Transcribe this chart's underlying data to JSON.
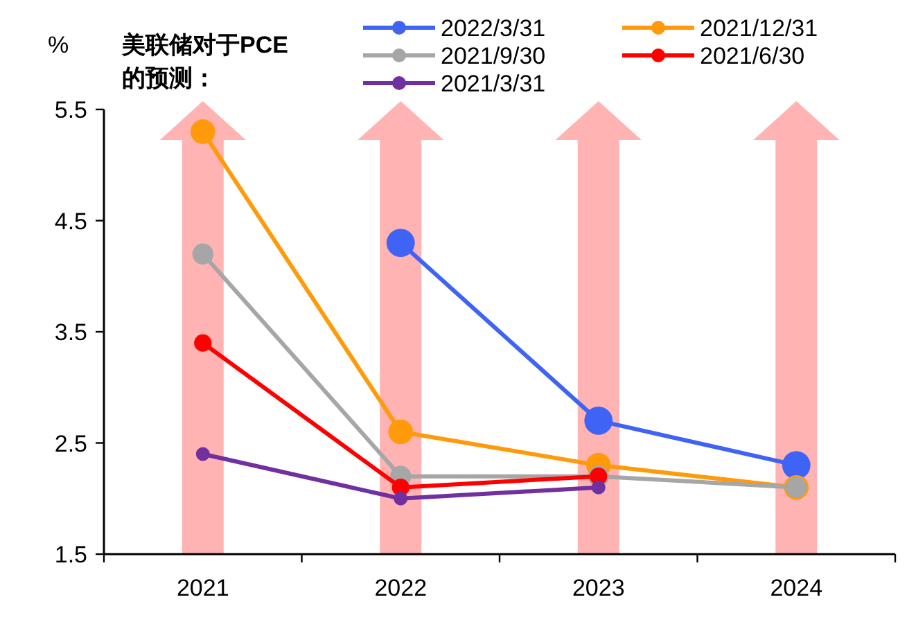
{
  "chart_data": {
    "type": "line",
    "ylabel": "%",
    "legend_title": "美联储对于PCE的预测：",
    "categories": [
      "2021",
      "2022",
      "2023",
      "2024"
    ],
    "ylim": [
      1.5,
      5.5
    ],
    "yticks": [
      1.5,
      2.5,
      3.5,
      4.5,
      5.5
    ],
    "grid": false,
    "legend": "top",
    "marker": "circle",
    "line_style": "solid",
    "series": [
      {
        "name": "2022/3/31",
        "color": "#3f64f5",
        "values": [
          null,
          4.3,
          2.7,
          2.3
        ]
      },
      {
        "name": "2021/12/31",
        "color": "#ff9a0a",
        "values": [
          5.3,
          2.6,
          2.3,
          2.1
        ]
      },
      {
        "name": "2021/9/30",
        "color": "#a6a6a6",
        "values": [
          4.2,
          2.2,
          2.2,
          2.1
        ]
      },
      {
        "name": "2021/6/30",
        "color": "#ff0000",
        "values": [
          3.4,
          2.1,
          2.2,
          null
        ]
      },
      {
        "name": "2021/3/31",
        "color": "#7030a0",
        "values": [
          2.4,
          2.0,
          2.1,
          null
        ]
      }
    ]
  }
}
